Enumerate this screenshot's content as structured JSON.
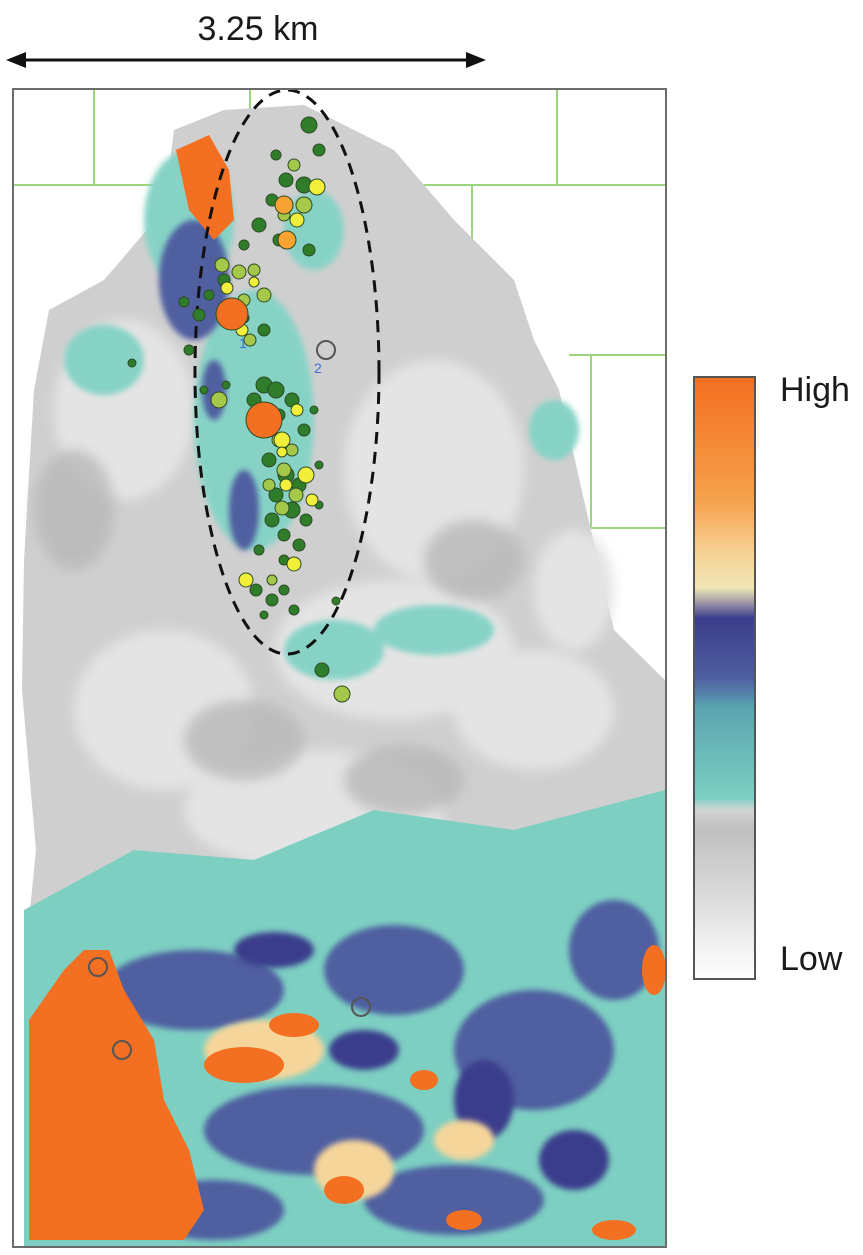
{
  "scale_bar": {
    "label": "3.25 km"
  },
  "colorbar": {
    "high_label": "High",
    "low_label": "Low"
  },
  "annotations": {
    "well_1": "1",
    "well_2": "2"
  },
  "colors": {
    "orange_high": "#f36f21",
    "purple": "#3b3d8c",
    "teal": "#7dcfc2",
    "gray": "#c4c4c4",
    "grid_green": "#9bd67e",
    "event_dark_green": "#2f7d2a",
    "event_light_green": "#a6c84a",
    "event_yellow": "#f2ef3a",
    "event_orange": "#f7a232",
    "event_red_orange": "#f36f21"
  },
  "icons": [
    "scale-arrow-icon",
    "ellipse-outline",
    "event-marker",
    "well-marker"
  ]
}
